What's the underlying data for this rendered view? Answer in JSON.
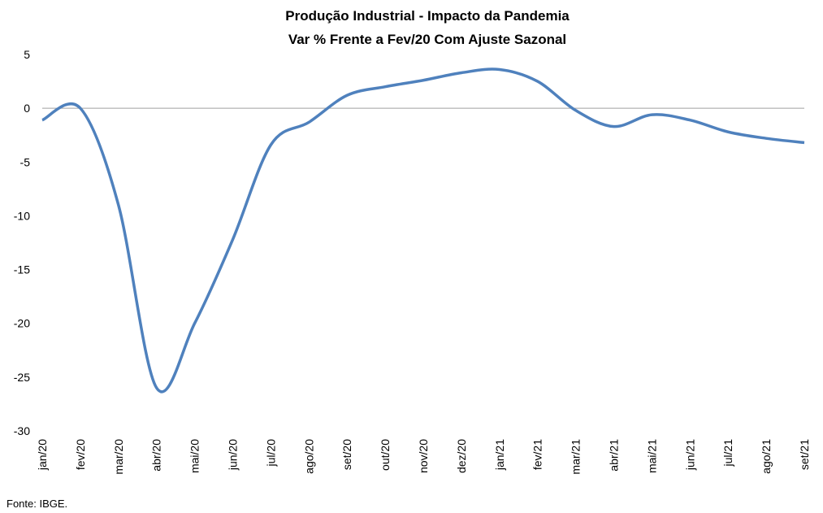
{
  "chart_data": {
    "type": "line",
    "title": "Produção Industrial - Impacto da Pandemia",
    "subtitle": "Var % Frente a Fev/20 Com Ajuste Sazonal",
    "source": "Fonte: IBGE.",
    "categories": [
      "jan/20",
      "fev/20",
      "mar/20",
      "abr/20",
      "mai/20",
      "jun/20",
      "jul/20",
      "ago/20",
      "set/20",
      "out/20",
      "nov/20",
      "dez/20",
      "jan/21",
      "fev/21",
      "mar/21",
      "abr/21",
      "mai/21",
      "jun/21",
      "jul/21",
      "ago/21",
      "set/21"
    ],
    "series": [
      {
        "name": "Produção Industrial",
        "color": "#4f81bd",
        "values": [
          -1.1,
          0,
          -9,
          -26,
          -20,
          -12.2,
          -3.4,
          -1.3,
          1.2,
          2.0,
          2.6,
          3.3,
          3.6,
          2.5,
          -0.2,
          -1.7,
          -0.6,
          -1.1,
          -2.2,
          -2.8,
          -3.2
        ]
      }
    ],
    "ylim": [
      -30,
      5
    ],
    "yticks": [
      -30,
      -25,
      -20,
      -15,
      -10,
      -5,
      0,
      5
    ]
  }
}
